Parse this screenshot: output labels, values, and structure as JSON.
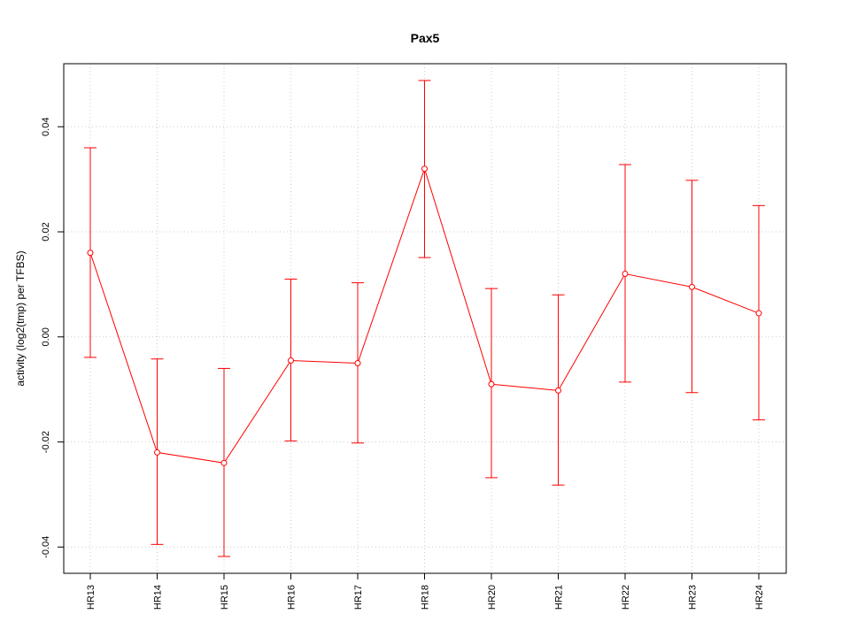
{
  "chart_data": {
    "type": "line",
    "title": "Pax5",
    "xlabel": "",
    "ylabel": "activity (log2(tmp) per TFBS)",
    "categories": [
      "HR13",
      "HR14",
      "HR15",
      "HR16",
      "HR17",
      "HR18",
      "HR20",
      "HR21",
      "HR22",
      "HR23",
      "HR24"
    ],
    "series": [
      {
        "values": [
          0.016,
          -0.022,
          -0.024,
          -0.0045,
          -0.005,
          0.032,
          -0.009,
          -0.0102,
          0.012,
          0.0095,
          0.0045
        ],
        "upper": [
          0.036,
          -0.0042,
          -0.006,
          0.011,
          0.0103,
          0.0488,
          0.0092,
          0.008,
          0.0328,
          0.0298,
          0.025
        ],
        "lower": [
          -0.0039,
          -0.0395,
          -0.0418,
          -0.0198,
          -0.0202,
          0.0151,
          -0.0268,
          -0.0282,
          -0.0086,
          -0.0106,
          -0.0158
        ],
        "color": "#ff0000"
      }
    ],
    "yticks": [
      -0.04,
      -0.02,
      0.0,
      0.02,
      0.04
    ],
    "ytick_labels": [
      "-0.04",
      "-0.02",
      "0.00",
      "0.02",
      "0.04"
    ],
    "ylim": [
      -0.045,
      0.052
    ],
    "grid": true,
    "legend": "none"
  }
}
